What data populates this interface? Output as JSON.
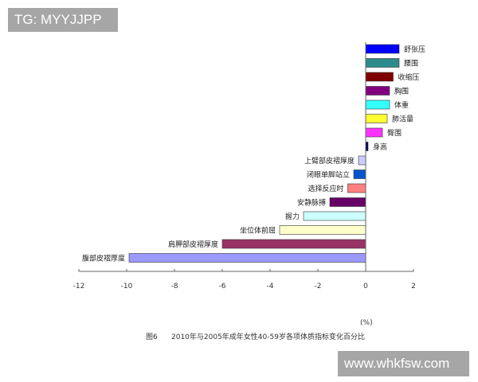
{
  "watermarks": {
    "top_left": "TG: MYYJJPP",
    "bottom_right": "www.whkfsw.com"
  },
  "caption": {
    "figure_no": "图6",
    "text": "2010年与2005年成年女性40-59岁各项体质指标变化百分比"
  },
  "unit_label": "(%)",
  "chart_data": {
    "type": "bar",
    "orientation": "horizontal",
    "title": "图6 2010年与2005年成年女性40-59岁各项体质指标变化百分比",
    "xlabel": "(%)",
    "ylabel": "",
    "xlim": [
      -12,
      2
    ],
    "xticks": [
      -12,
      -10,
      -8,
      -6,
      -4,
      -2,
      0,
      2
    ],
    "grid": false,
    "legend": "none",
    "categories": [
      "舒张压",
      "腰围",
      "收缩压",
      "胸围",
      "体重",
      "肺活量",
      "臀围",
      "身高",
      "上臂部皮褶厚度",
      "闭眼单脚站立",
      "选择反应时",
      "安静脉搏",
      "握力",
      "坐位体前屈",
      "肩胛部皮褶厚度",
      "腹部皮褶厚度"
    ],
    "values": [
      1.4,
      1.4,
      1.15,
      1.0,
      1.0,
      0.9,
      0.7,
      0.1,
      -0.3,
      -0.5,
      -0.75,
      -1.5,
      -2.6,
      -3.6,
      -6.0,
      -9.9
    ],
    "colors": [
      "#0000ff",
      "#2e8b8b",
      "#800000",
      "#800080",
      "#33ffff",
      "#ffff33",
      "#ff33ff",
      "#000066",
      "#ccccff",
      "#0055cc",
      "#ff8080",
      "#660066",
      "#ccffff",
      "#ffffcc",
      "#993366",
      "#9999ff"
    ]
  }
}
